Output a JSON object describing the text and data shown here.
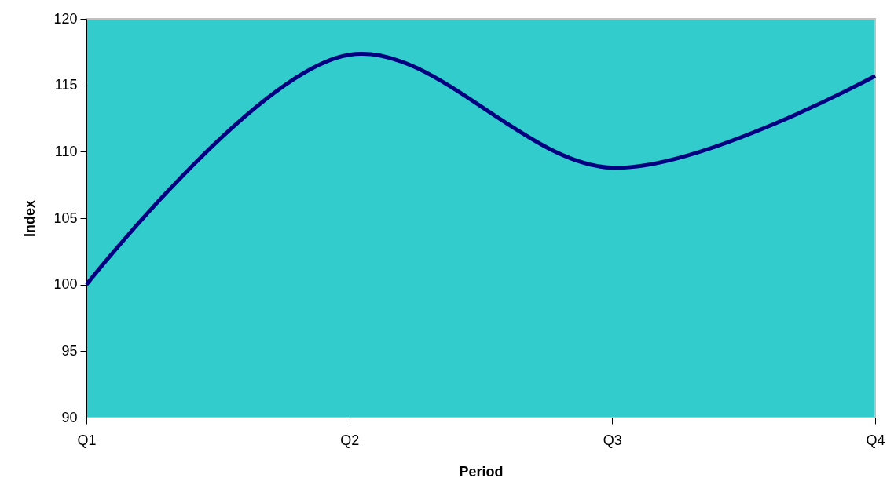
{
  "chart_data": {
    "type": "line",
    "xlabel": "Period",
    "ylabel": "Index",
    "categories": [
      "Q1",
      "Q2",
      "Q3",
      "Q4"
    ],
    "series": [
      {
        "color": "#000080",
        "values": [
          100,
          117.3,
          108.8,
          115.7
        ]
      }
    ],
    "ylim": [
      90,
      120
    ],
    "yticks": [
      90,
      95,
      100,
      105,
      110,
      115,
      120
    ],
    "grid": false,
    "legend": false,
    "marker": "none",
    "line_style": "solid"
  }
}
